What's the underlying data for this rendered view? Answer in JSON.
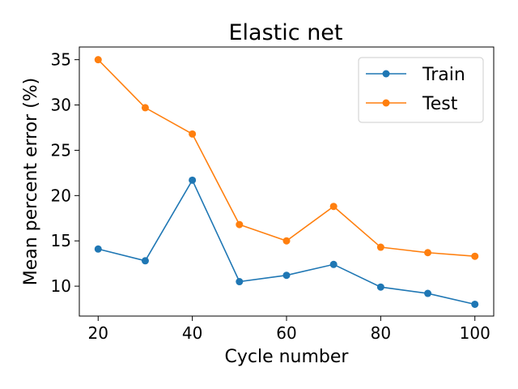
{
  "chart_data": {
    "type": "line",
    "title": "Elastic net",
    "xlabel": "Cycle number",
    "ylabel": "Mean percent error (%)",
    "x": [
      20,
      30,
      40,
      50,
      60,
      70,
      80,
      90,
      100
    ],
    "xlim": [
      16,
      104
    ],
    "ylim": [
      6.7,
      36.4
    ],
    "xticks": [
      20,
      40,
      60,
      80,
      100
    ],
    "yticks": [
      10,
      15,
      20,
      25,
      30,
      35
    ],
    "legend_position": "top-right",
    "grid": false,
    "series": [
      {
        "name": "Train",
        "color": "#1f77b4",
        "values": [
          14.1,
          12.8,
          21.7,
          10.5,
          11.2,
          12.4,
          9.9,
          9.2,
          8.0
        ]
      },
      {
        "name": "Test",
        "color": "#ff7f0e",
        "values": [
          35.0,
          29.7,
          26.8,
          16.8,
          15.0,
          18.8,
          14.3,
          13.7,
          13.3
        ]
      }
    ]
  }
}
